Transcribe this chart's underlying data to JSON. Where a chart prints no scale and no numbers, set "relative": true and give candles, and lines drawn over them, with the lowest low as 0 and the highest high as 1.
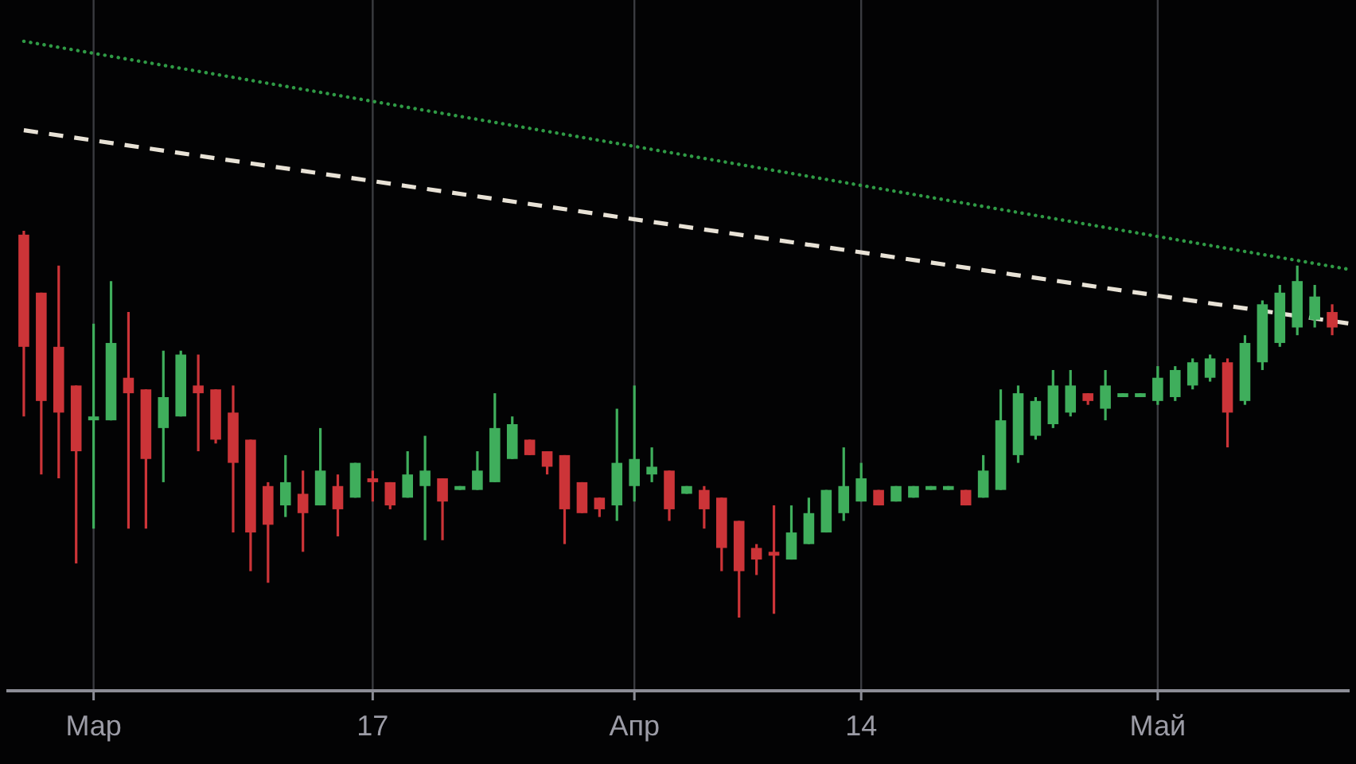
{
  "chart_data": {
    "type": "candlestick",
    "relative": true,
    "grid": "x",
    "xlim": [
      "--02-24",
      "--05-12"
    ],
    "xticks": [
      {
        "value": "--03-01",
        "label": "Мар"
      },
      {
        "value": "--03-17",
        "label": "17"
      },
      {
        "value": "--04-01",
        "label": "Апр"
      },
      {
        "value": "--04-14",
        "label": "14"
      },
      {
        "value": "--05-01",
        "label": "Май"
      }
    ],
    "x": [
      "--02-25",
      "--02-26",
      "--02-27",
      "--02-28",
      "--03-01",
      "--03-02",
      "--03-03",
      "--03-04",
      "--03-05",
      "--03-06",
      "--03-07",
      "--03-08",
      "--03-09",
      "--03-10",
      "--03-11",
      "--03-12",
      "--03-13",
      "--03-14",
      "--03-15",
      "--03-16",
      "--03-17",
      "--03-18",
      "--03-19",
      "--03-20",
      "--03-21",
      "--03-22",
      "--03-23",
      "--03-24",
      "--03-25",
      "--03-26",
      "--03-27",
      "--03-28",
      "--03-29",
      "--03-30",
      "--03-31",
      "--04-01",
      "--04-02",
      "--04-03",
      "--04-04",
      "--04-05",
      "--04-06",
      "--04-07",
      "--04-08",
      "--04-09",
      "--04-10",
      "--04-11",
      "--04-12",
      "--04-13",
      "--04-14",
      "--04-15",
      "--04-16",
      "--04-17",
      "--04-18",
      "--04-19",
      "--04-20",
      "--04-21",
      "--04-22",
      "--04-23",
      "--04-24",
      "--04-25",
      "--04-26",
      "--04-27",
      "--04-28",
      "--04-29",
      "--04-30",
      "--05-01",
      "--05-02",
      "--05-03",
      "--05-04",
      "--05-05",
      "--05-06",
      "--05-07",
      "--05-08",
      "--05-09",
      "--05-10",
      "--05-11"
    ],
    "ohlc": [
      [
        0.99,
        1,
        0.52,
        0.7
      ],
      [
        0.84,
        0.84,
        0.37,
        0.56
      ],
      [
        0.7,
        0.91,
        0.36,
        0.53
      ],
      [
        0.6,
        0.6,
        0.14,
        0.43
      ],
      [
        0.51,
        0.76,
        0.23,
        0.52
      ],
      [
        0.51,
        0.87,
        0.51,
        0.71
      ],
      [
        0.62,
        0.79,
        0.23,
        0.58
      ],
      [
        0.59,
        0.59,
        0.23,
        0.41
      ],
      [
        0.49,
        0.69,
        0.35,
        0.57
      ],
      [
        0.52,
        0.69,
        0.52,
        0.68
      ],
      [
        0.6,
        0.68,
        0.43,
        0.58
      ],
      [
        0.59,
        0.59,
        0.45,
        0.46
      ],
      [
        0.53,
        0.6,
        0.22,
        0.4
      ],
      [
        0.46,
        0.46,
        0.12,
        0.22
      ],
      [
        0.34,
        0.35,
        0.09,
        0.24
      ],
      [
        0.29,
        0.42,
        0.26,
        0.35
      ],
      [
        0.32,
        0.38,
        0.17,
        0.27
      ],
      [
        0.29,
        0.49,
        0.29,
        0.38
      ],
      [
        0.34,
        0.37,
        0.21,
        0.28
      ],
      [
        0.31,
        0.4,
        0.31,
        0.4
      ],
      [
        0.36,
        0.38,
        0.3,
        0.35
      ],
      [
        0.35,
        0.35,
        0.28,
        0.29
      ],
      [
        0.31,
        0.43,
        0.31,
        0.37
      ],
      [
        0.34,
        0.47,
        0.2,
        0.38
      ],
      [
        0.36,
        0.36,
        0.2,
        0.3
      ],
      [
        0.33,
        0.34,
        0.33,
        0.34
      ],
      [
        0.33,
        0.43,
        0.33,
        0.38
      ],
      [
        0.35,
        0.58,
        0.35,
        0.49
      ],
      [
        0.41,
        0.52,
        0.41,
        0.5
      ],
      [
        0.46,
        0.46,
        0.42,
        0.42
      ],
      [
        0.43,
        0.43,
        0.37,
        0.39
      ],
      [
        0.42,
        0.42,
        0.19,
        0.28
      ],
      [
        0.35,
        0.35,
        0.27,
        0.27
      ],
      [
        0.31,
        0.31,
        0.26,
        0.28
      ],
      [
        0.29,
        0.54,
        0.25,
        0.4
      ],
      [
        0.34,
        0.6,
        0.3,
        0.41
      ],
      [
        0.37,
        0.44,
        0.35,
        0.39
      ],
      [
        0.38,
        0.38,
        0.25,
        0.28
      ],
      [
        0.32,
        0.34,
        0.32,
        0.34
      ],
      [
        0.33,
        0.34,
        0.23,
        0.28
      ],
      [
        0.31,
        0.31,
        0.12,
        0.18
      ],
      [
        0.25,
        0.25,
        0,
        0.12
      ],
      [
        0.18,
        0.19,
        0.11,
        0.15
      ],
      [
        0.17,
        0.29,
        0.01,
        0.16
      ],
      [
        0.15,
        0.29,
        0.15,
        0.22
      ],
      [
        0.19,
        0.31,
        0.19,
        0.27
      ],
      [
        0.22,
        0.33,
        0.22,
        0.33
      ],
      [
        0.27,
        0.44,
        0.25,
        0.34
      ],
      [
        0.3,
        0.4,
        0.3,
        0.36
      ],
      [
        0.33,
        0.33,
        0.29,
        0.29
      ],
      [
        0.3,
        0.34,
        0.3,
        0.34
      ],
      [
        0.31,
        0.34,
        0.31,
        0.34
      ],
      [
        0.33,
        0.34,
        0.33,
        0.34
      ],
      [
        0.33,
        0.34,
        0.33,
        0.34
      ],
      [
        0.33,
        0.33,
        0.29,
        0.29
      ],
      [
        0.31,
        0.42,
        0.31,
        0.38
      ],
      [
        0.33,
        0.59,
        0.33,
        0.51
      ],
      [
        0.42,
        0.6,
        0.4,
        0.58
      ],
      [
        0.47,
        0.57,
        0.46,
        0.56
      ],
      [
        0.5,
        0.64,
        0.49,
        0.6
      ],
      [
        0.53,
        0.64,
        0.52,
        0.6
      ],
      [
        0.58,
        0.58,
        0.55,
        0.56
      ],
      [
        0.54,
        0.64,
        0.51,
        0.6
      ],
      [
        0.57,
        0.58,
        0.57,
        0.58
      ],
      [
        0.57,
        0.58,
        0.57,
        0.58
      ],
      [
        0.56,
        0.65,
        0.55,
        0.62
      ],
      [
        0.57,
        0.65,
        0.56,
        0.64
      ],
      [
        0.6,
        0.67,
        0.59,
        0.66
      ],
      [
        0.62,
        0.68,
        0.61,
        0.67
      ],
      [
        0.66,
        0.67,
        0.44,
        0.53
      ],
      [
        0.56,
        0.73,
        0.55,
        0.71
      ],
      [
        0.66,
        0.82,
        0.64,
        0.81
      ],
      [
        0.71,
        0.86,
        0.7,
        0.84
      ],
      [
        0.75,
        0.91,
        0.73,
        0.87
      ],
      [
        0.77,
        0.86,
        0.75,
        0.83
      ],
      [
        0.79,
        0.81,
        0.73,
        0.75
      ]
    ],
    "colors": [
      "#cc3438",
      "#cc3438",
      "#cc3438",
      "#cc3438",
      "#3fae5c",
      "#3fae5c",
      "#cc3438",
      "#cc3438",
      "#3fae5c",
      "#3fae5c",
      "#cc3438",
      "#cc3438",
      "#cc3438",
      "#cc3438",
      "#cc3438",
      "#3fae5c",
      "#cc3438",
      "#3fae5c",
      "#cc3438",
      "#3fae5c",
      "#cc3438",
      "#cc3438",
      "#3fae5c",
      "#3fae5c",
      "#cc3438",
      "#3fae5c",
      "#3fae5c",
      "#3fae5c",
      "#3fae5c",
      "#cc3438",
      "#cc3438",
      "#cc3438",
      "#cc3438",
      "#cc3438",
      "#3fae5c",
      "#3fae5c",
      "#3fae5c",
      "#cc3438",
      "#3fae5c",
      "#cc3438",
      "#cc3438",
      "#cc3438",
      "#cc3438",
      "#cc3438",
      "#3fae5c",
      "#3fae5c",
      "#3fae5c",
      "#3fae5c",
      "#3fae5c",
      "#cc3438",
      "#3fae5c",
      "#3fae5c",
      "#3fae5c",
      "#3fae5c",
      "#cc3438",
      "#3fae5c",
      "#3fae5c",
      "#3fae5c",
      "#3fae5c",
      "#3fae5c",
      "#3fae5c",
      "#cc3438",
      "#3fae5c",
      "#3fae5c",
      "#3fae5c",
      "#3fae5c",
      "#3fae5c",
      "#3fae5c",
      "#3fae5c",
      "#cc3438",
      "#3fae5c",
      "#3fae5c",
      "#3fae5c",
      "#3fae5c",
      "#3fae5c",
      "#cc3438"
    ],
    "series": [
      {
        "type": "line",
        "x": [
          "--02-25",
          "--05-12"
        ],
        "values": [
          1.49,
          0.9
        ],
        "color": "#2f9a45",
        "line_style": "dotted"
      },
      {
        "type": "line",
        "x": [
          "--02-25",
          "--05-12"
        ],
        "values": [
          1.26,
          0.76
        ],
        "color": "#e8e2d6",
        "line_style": "dashed"
      }
    ]
  }
}
